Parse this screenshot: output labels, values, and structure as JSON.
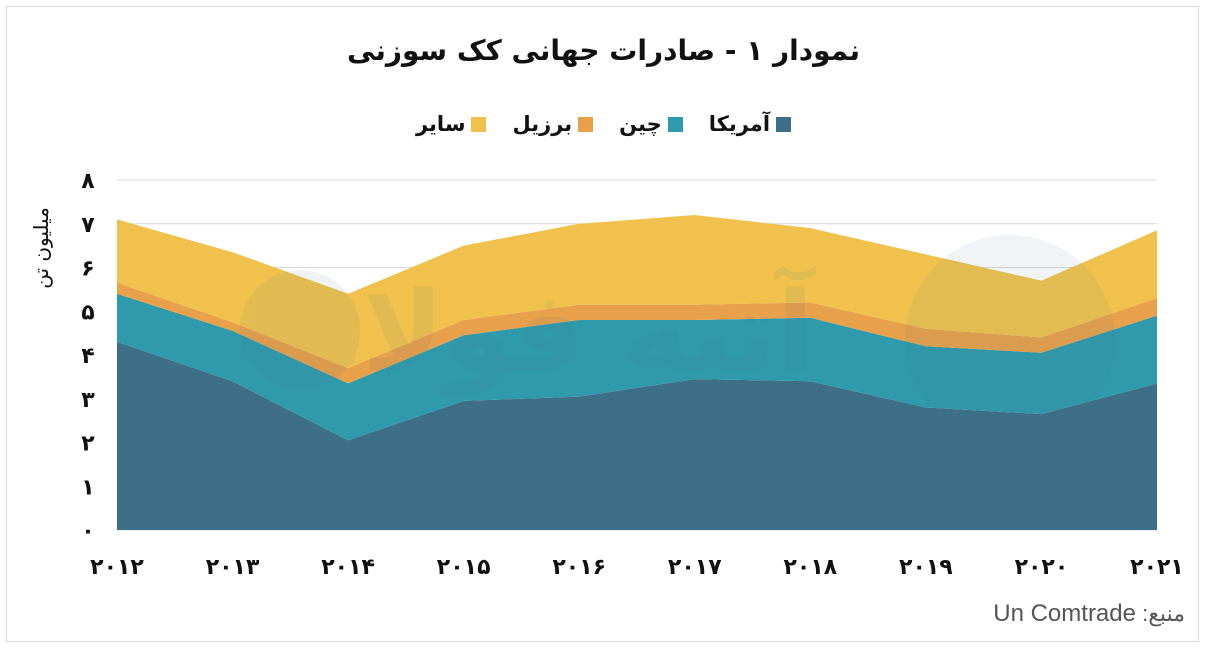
{
  "chart_data": {
    "type": "area",
    "stacked": true,
    "title": "نمودار ۱ - صادرات جهانی کک سوزنی",
    "ylabel": "میلیون تن",
    "xlabel": "",
    "categories": [
      "۲۰۱۲",
      "۲۰۱۳",
      "۲۰۱۴",
      "۲۰۱۵",
      "۲۰۱۶",
      "۲۰۱۷",
      "۲۰۱۸",
      "۲۰۱۹",
      "۲۰۲۰",
      "۲۰۲۱"
    ],
    "yticks": [
      "۰",
      "۱",
      "۲",
      "۳",
      "۴",
      "۵",
      "۶",
      "۷",
      "۸"
    ],
    "ylim": [
      0,
      8
    ],
    "grid": true,
    "legend_position": "top",
    "series": [
      {
        "name": "آمریکا",
        "color": "#3e6f89",
        "values": [
          4.3,
          3.4,
          2.05,
          2.95,
          3.05,
          3.45,
          3.4,
          2.8,
          2.65,
          3.35
        ]
      },
      {
        "name": "چین",
        "color": "#2f9aab",
        "values": [
          1.1,
          1.15,
          1.3,
          1.5,
          1.75,
          1.35,
          1.45,
          1.4,
          1.4,
          1.55
        ]
      },
      {
        "name": "برزیل",
        "color": "#e8a04a",
        "values": [
          0.25,
          0.2,
          0.35,
          0.35,
          0.35,
          0.35,
          0.35,
          0.4,
          0.35,
          0.4
        ]
      },
      {
        "name": "سایر",
        "color": "#f0c24d",
        "values": [
          1.45,
          1.6,
          1.7,
          1.7,
          1.85,
          2.05,
          1.7,
          1.7,
          1.3,
          1.55
        ]
      }
    ]
  },
  "source": {
    "label": "منبع:",
    "value": "Un Comtrade"
  },
  "watermark": "آتیه فولاد"
}
